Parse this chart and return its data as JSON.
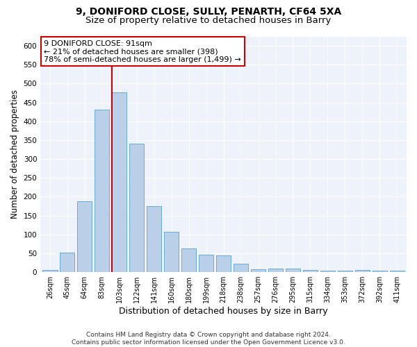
{
  "title1": "9, DONIFORD CLOSE, SULLY, PENARTH, CF64 5XA",
  "title2": "Size of property relative to detached houses in Barry",
  "xlabel": "Distribution of detached houses by size in Barry",
  "ylabel": "Number of detached properties",
  "categories": [
    "26sqm",
    "45sqm",
    "64sqm",
    "83sqm",
    "103sqm",
    "122sqm",
    "141sqm",
    "160sqm",
    "180sqm",
    "199sqm",
    "218sqm",
    "238sqm",
    "257sqm",
    "276sqm",
    "295sqm",
    "315sqm",
    "334sqm",
    "353sqm",
    "372sqm",
    "392sqm",
    "411sqm"
  ],
  "values": [
    5,
    52,
    188,
    430,
    477,
    340,
    175,
    107,
    62,
    47,
    44,
    22,
    7,
    10,
    10,
    6,
    4,
    4,
    5,
    4,
    3
  ],
  "bar_color": "#bad0e8",
  "bar_edge_color": "#6aaad4",
  "vline_color": "#cc0000",
  "vline_x_index": 3.58,
  "annotation_lines": [
    "9 DONIFORD CLOSE: 91sqm",
    "← 21% of detached houses are smaller (398)",
    "78% of semi-detached houses are larger (1,499) →"
  ],
  "annotation_box_color": "#ffffff",
  "annotation_box_edge": "#cc0000",
  "ylim": [
    0,
    625
  ],
  "yticks": [
    0,
    50,
    100,
    150,
    200,
    250,
    300,
    350,
    400,
    450,
    500,
    550,
    600
  ],
  "footer": "Contains HM Land Registry data © Crown copyright and database right 2024.\nContains public sector information licensed under the Open Government Licence v3.0.",
  "background_color": "#eef2fa",
  "grid_color": "#ffffff",
  "title1_fontsize": 10,
  "title2_fontsize": 9.5,
  "xlabel_fontsize": 9,
  "ylabel_fontsize": 8.5,
  "tick_fontsize": 7,
  "annotation_fontsize": 8,
  "footer_fontsize": 6.5
}
